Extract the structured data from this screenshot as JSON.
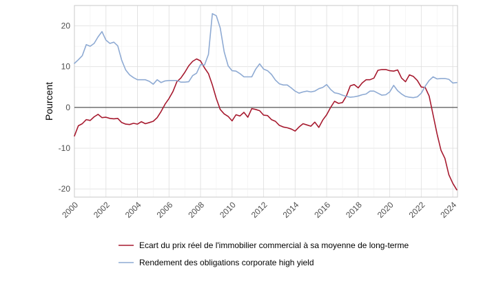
{
  "chart_data": {
    "type": "line",
    "title": "",
    "xlabel": "",
    "ylabel": "Pourcent",
    "xlim": [
      2000,
      2024.3
    ],
    "ylim": [
      -22,
      25
    ],
    "x_ticks": [
      "2000",
      "2002",
      "2004",
      "2006",
      "2008",
      "2010",
      "2012",
      "2014",
      "2016",
      "2018",
      "2020",
      "2022",
      "2024"
    ],
    "y_ticks": [
      "20",
      "10",
      "0",
      "-10",
      "-20"
    ],
    "grid": true,
    "legend_position": "bottom",
    "series": [
      {
        "name": "Ecart du prix réel de l'immobilier commercial à sa moyenne de long-terme",
        "color": "#a6192e",
        "x": [
          2000,
          2000.25,
          2000.5,
          2000.75,
          2001,
          2001.25,
          2001.5,
          2001.75,
          2002,
          2002.25,
          2002.5,
          2002.75,
          2003,
          2003.25,
          2003.5,
          2003.75,
          2004,
          2004.25,
          2004.5,
          2004.75,
          2005,
          2005.25,
          2005.5,
          2005.75,
          2006,
          2006.25,
          2006.5,
          2006.75,
          2007,
          2007.25,
          2007.5,
          2007.75,
          2008,
          2008.25,
          2008.5,
          2008.75,
          2009,
          2009.25,
          2009.5,
          2009.75,
          2010,
          2010.25,
          2010.5,
          2010.75,
          2011,
          2011.25,
          2011.5,
          2011.75,
          2012,
          2012.25,
          2012.5,
          2012.75,
          2013,
          2013.25,
          2013.5,
          2013.75,
          2014,
          2014.25,
          2014.5,
          2014.75,
          2015,
          2015.25,
          2015.5,
          2015.75,
          2016,
          2016.25,
          2016.5,
          2016.75,
          2017,
          2017.25,
          2017.5,
          2017.75,
          2018,
          2018.25,
          2018.5,
          2018.75,
          2019,
          2019.25,
          2019.5,
          2019.75,
          2020,
          2020.25,
          2020.5,
          2020.75,
          2021,
          2021.25,
          2021.5,
          2021.75,
          2022,
          2022.25,
          2022.5,
          2022.75,
          2023,
          2023.25,
          2023.5,
          2023.75,
          2024,
          2024.25
        ],
        "values": [
          -7,
          -4.5,
          -4,
          -3,
          -3.2,
          -2.3,
          -1.7,
          -2.5,
          -2.4,
          -2.7,
          -2.8,
          -2.7,
          -3.7,
          -4.1,
          -4.2,
          -3.9,
          -4.1,
          -3.5,
          -4.0,
          -3.7,
          -3.4,
          -2.5,
          -1.0,
          0.8,
          2.2,
          3.9,
          6.3,
          7.2,
          8.6,
          10.2,
          11.3,
          11.9,
          11.4,
          9.7,
          8.3,
          5.5,
          2.2,
          -0.5,
          -1.6,
          -2.2,
          -3.3,
          -1.8,
          -2.1,
          -1.2,
          -2.4,
          -0.3,
          -0.5,
          -0.8,
          -1.9,
          -2.0,
          -3.0,
          -3.4,
          -4.4,
          -4.8,
          -5.0,
          -5.3,
          -5.8,
          -4.8,
          -4.0,
          -4.3,
          -4.6,
          -3.6,
          -4.9,
          -3.1,
          -1.8,
          0.0,
          1.5,
          1.0,
          1.2,
          2.8,
          5.3,
          5.6,
          4.8,
          6.0,
          6.8,
          6.8,
          7.2,
          9.1,
          9.3,
          9.3,
          9.0,
          8.9,
          9.2,
          7.2,
          6.3,
          8.0,
          7.6,
          6.6,
          5.0,
          4.9,
          2.8,
          -1.8,
          -6.5,
          -10.5,
          -12.5,
          -16.5,
          -18.6,
          -20.2
        ]
      },
      {
        "name": "Rendement des obligations corporate high yield",
        "color": "#8eaad3",
        "x": [
          2000,
          2000.25,
          2000.5,
          2000.75,
          2001,
          2001.25,
          2001.5,
          2001.75,
          2002,
          2002.25,
          2002.5,
          2002.75,
          2003,
          2003.25,
          2003.5,
          2003.75,
          2004,
          2004.25,
          2004.5,
          2004.75,
          2005,
          2005.25,
          2005.5,
          2005.75,
          2006,
          2006.25,
          2006.5,
          2006.75,
          2007,
          2007.25,
          2007.5,
          2007.75,
          2008,
          2008.25,
          2008.5,
          2008.75,
          2009,
          2009.25,
          2009.5,
          2009.75,
          2010,
          2010.25,
          2010.5,
          2010.75,
          2011,
          2011.25,
          2011.5,
          2011.75,
          2012,
          2012.25,
          2012.5,
          2012.75,
          2013,
          2013.25,
          2013.5,
          2013.75,
          2014,
          2014.25,
          2014.5,
          2014.75,
          2015,
          2015.25,
          2015.5,
          2015.75,
          2016,
          2016.25,
          2016.5,
          2016.75,
          2017,
          2017.25,
          2017.5,
          2017.75,
          2018,
          2018.25,
          2018.5,
          2018.75,
          2019,
          2019.25,
          2019.5,
          2019.75,
          2020,
          2020.25,
          2020.5,
          2020.75,
          2021,
          2021.25,
          2021.5,
          2021.75,
          2022,
          2022.25,
          2022.5,
          2022.75,
          2023,
          2023.25,
          2023.5,
          2023.75,
          2024,
          2024.25
        ],
        "values": [
          10.8,
          11.7,
          12.7,
          15.4,
          15.0,
          15.7,
          17.3,
          18.6,
          16.5,
          15.7,
          16.0,
          15.1,
          11.6,
          9.2,
          8.0,
          7.3,
          6.8,
          6.8,
          6.8,
          6.4,
          5.7,
          6.8,
          6.1,
          6.5,
          6.6,
          6.6,
          6.6,
          6.2,
          6.2,
          6.3,
          7.8,
          8.4,
          10.5,
          10.4,
          13.0,
          23.0,
          22.5,
          19.5,
          13.6,
          10.2,
          9.0,
          8.9,
          8.3,
          7.5,
          7.5,
          7.5,
          9.4,
          10.7,
          9.4,
          9.0,
          8.1,
          6.7,
          5.8,
          5.5,
          5.5,
          4.8,
          4.0,
          3.5,
          3.8,
          4.0,
          3.8,
          4.0,
          4.6,
          4.9,
          5.6,
          4.4,
          3.6,
          3.4,
          3.0,
          2.7,
          2.5,
          2.6,
          2.8,
          3.1,
          3.3,
          4.0,
          4.0,
          3.5,
          3.0,
          3.1,
          3.8,
          5.4,
          4.1,
          3.3,
          2.7,
          2.5,
          2.4,
          2.6,
          3.5,
          5.2,
          6.6,
          7.5,
          7.0,
          7.1,
          7.1,
          6.9,
          6.0,
          6.1
        ]
      }
    ]
  }
}
